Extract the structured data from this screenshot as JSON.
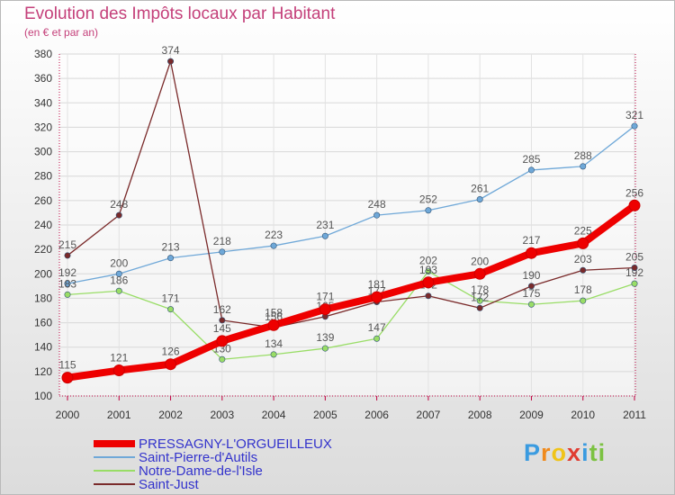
{
  "chart_data": {
    "type": "line",
    "title": "Evolution des Impôts locaux par Habitant",
    "subtitle": "(en € et par an)",
    "x": [
      "2000",
      "2001",
      "2002",
      "2003",
      "2004",
      "2005",
      "2006",
      "2007",
      "2008",
      "2009",
      "2010",
      "2011"
    ],
    "ylim": [
      100,
      380
    ],
    "yticks": [
      100,
      120,
      140,
      160,
      180,
      200,
      220,
      240,
      260,
      280,
      300,
      320,
      340,
      360,
      380
    ],
    "series": [
      {
        "name": "PRESSAGNY-L'ORGUEILLEUX",
        "color": "#ee0000",
        "legend_color": "#3333cc",
        "values": [
          115,
          121,
          126,
          145,
          158,
          171,
          181,
          193,
          200,
          217,
          225,
          256
        ]
      },
      {
        "name": "Saint-Pierre-d'Autils",
        "color": "#6fa8d8",
        "legend_color": "#3333cc",
        "values": [
          192,
          200,
          213,
          218,
          223,
          231,
          248,
          252,
          261,
          285,
          288,
          321
        ]
      },
      {
        "name": "Notre-Dame-de-l'Isle",
        "color": "#99dd66",
        "legend_color": "#3333cc",
        "values": [
          183,
          186,
          171,
          130,
          134,
          139,
          147,
          202,
          178,
          175,
          178,
          192
        ]
      },
      {
        "name": "Saint-Just",
        "color": "#7a2a2a",
        "legend_color": "#3333cc",
        "values": [
          215,
          248,
          374,
          162,
          156,
          165,
          177,
          182,
          172,
          190,
          203,
          205
        ]
      }
    ]
  },
  "logo": {
    "letters": [
      "P",
      "r",
      "o",
      "x",
      "i",
      "t",
      "i"
    ],
    "colors": [
      "#3a9be0",
      "#f08a1c",
      "#f0c419",
      "#e03c31",
      "#3a9be0",
      "#7cc242",
      "#7cc242"
    ]
  }
}
